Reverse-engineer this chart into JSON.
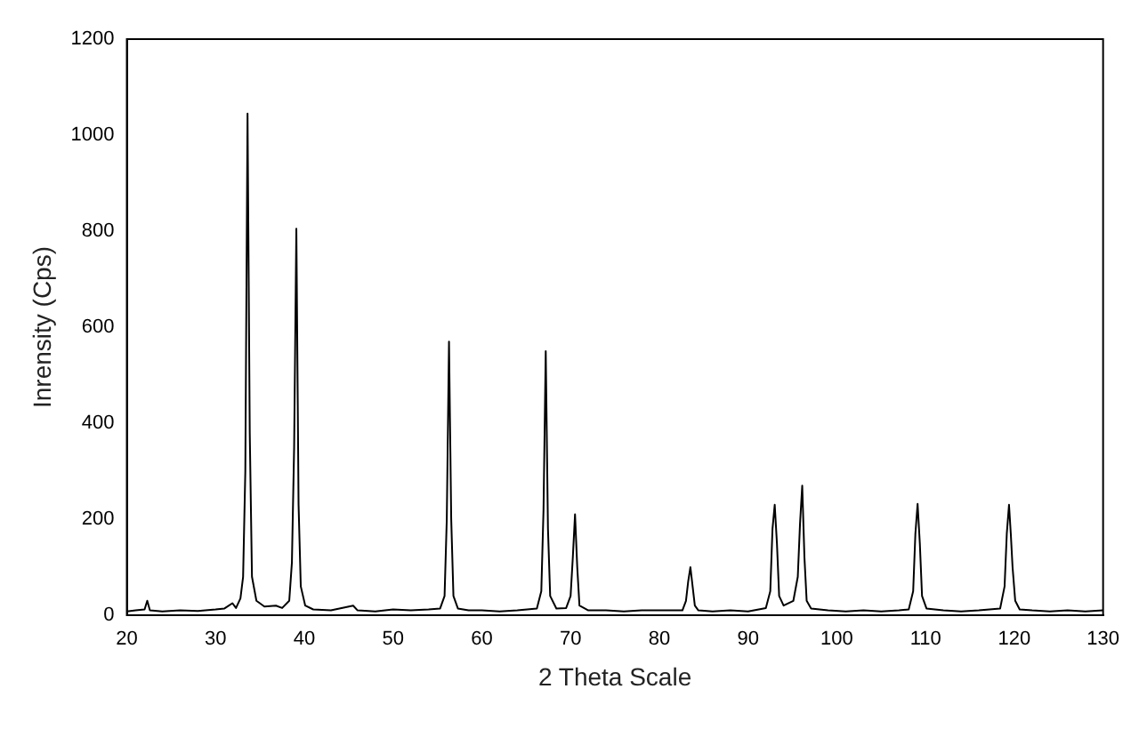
{
  "chart_data": {
    "type": "line",
    "xlabel": "2 Theta Scale",
    "ylabel": "Inrensity (Cps)",
    "xlim": [
      20,
      130
    ],
    "xticks": [
      20,
      30,
      40,
      50,
      60,
      70,
      80,
      90,
      100,
      110,
      120,
      130
    ],
    "ylim": [
      0,
      1200
    ],
    "yticks": [
      0,
      200,
      400,
      600,
      800,
      1000,
      1200
    ],
    "grid": false,
    "legend": false,
    "marker": "none",
    "line_style": "solid",
    "series": [
      {
        "color": "#000000",
        "x": [
          20,
          21,
          22,
          22.3,
          22.6,
          24,
          26,
          28,
          30,
          31,
          31.9,
          32.3,
          32.8,
          33.1,
          33.35,
          33.6,
          33.85,
          34.1,
          34.6,
          35.5,
          36.8,
          37.5,
          38.3,
          38.6,
          38.85,
          39.1,
          39.35,
          39.6,
          40.1,
          41,
          43,
          45.5,
          46,
          48,
          50,
          52,
          54,
          55.3,
          55.8,
          56.05,
          56.3,
          56.55,
          56.8,
          57.3,
          58.5,
          60,
          62,
          64,
          66.2,
          66.7,
          66.95,
          67.2,
          67.45,
          67.7,
          68.4,
          69.5,
          70,
          70.25,
          70.5,
          70.75,
          71,
          72,
          74,
          76,
          78,
          80,
          82.6,
          83,
          83.25,
          83.5,
          83.75,
          84,
          84.4,
          86,
          88,
          90,
          92,
          92.5,
          92.75,
          93,
          93.25,
          93.5,
          94,
          95.1,
          95.6,
          95.85,
          96.1,
          96.35,
          96.6,
          97.1,
          99,
          101,
          103,
          105,
          107,
          108.1,
          108.6,
          108.85,
          109.1,
          109.35,
          109.6,
          110.1,
          112,
          114,
          116,
          118.4,
          118.9,
          119.15,
          119.4,
          119.6,
          119.8,
          120.1,
          120.6,
          122,
          124,
          126,
          128,
          130
        ],
        "values": [
          8,
          10,
          12,
          30,
          10,
          8,
          10,
          9,
          12,
          14,
          25,
          15,
          35,
          80,
          300,
          1045,
          380,
          80,
          30,
          18,
          20,
          15,
          30,
          110,
          350,
          805,
          230,
          60,
          20,
          12,
          10,
          20,
          10,
          8,
          12,
          10,
          12,
          14,
          40,
          200,
          570,
          200,
          40,
          14,
          10,
          10,
          8,
          10,
          14,
          50,
          220,
          550,
          180,
          40,
          14,
          15,
          40,
          120,
          210,
          100,
          20,
          10,
          10,
          8,
          10,
          10,
          10,
          30,
          70,
          100,
          60,
          20,
          10,
          8,
          10,
          8,
          15,
          50,
          180,
          230,
          150,
          40,
          20,
          30,
          80,
          190,
          270,
          120,
          30,
          14,
          10,
          8,
          10,
          8,
          10,
          12,
          50,
          170,
          232,
          150,
          40,
          14,
          10,
          8,
          10,
          14,
          60,
          170,
          230,
          170,
          100,
          30,
          12,
          10,
          8,
          10,
          8,
          10
        ]
      }
    ]
  }
}
